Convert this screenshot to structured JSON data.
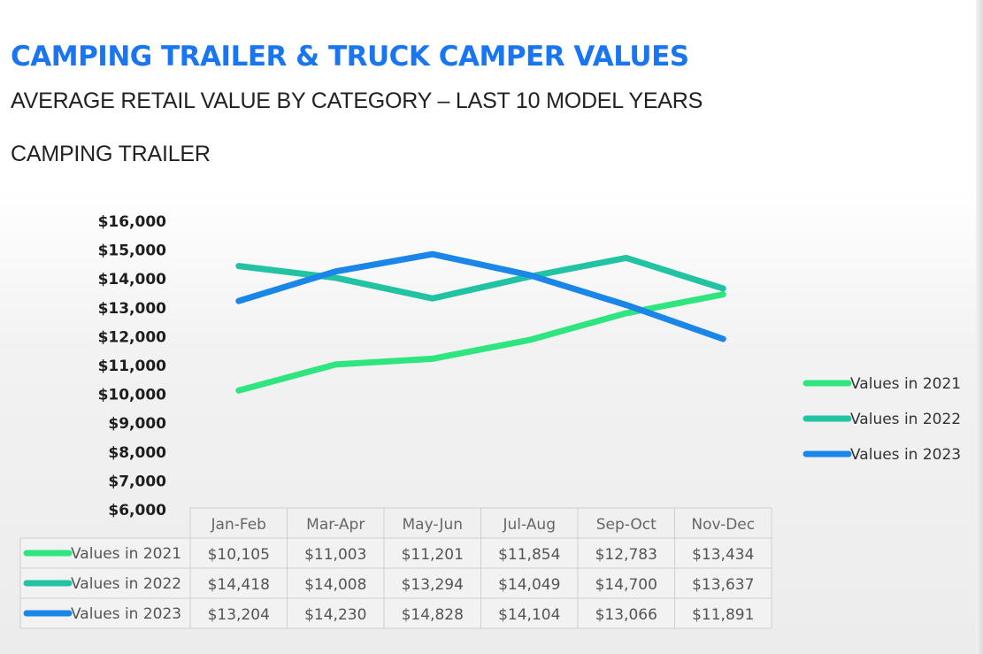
{
  "header": {
    "title": "CAMPING TRAILER & TRUCK CAMPER VALUES",
    "subtitle": "AVERAGE RETAIL VALUE BY CATEGORY – LAST 10 MODEL YEARS",
    "section": "CAMPING TRAILER"
  },
  "colors": {
    "title": "#1976f0",
    "series_2021": "#2fe57f",
    "series_2022": "#22c3a3",
    "series_2023": "#1a86e8"
  },
  "chart_data": {
    "type": "line",
    "title": "",
    "xlabel": "",
    "ylabel": "",
    "categories": [
      "Jan-Feb",
      "Mar-Apr",
      "May-Jun",
      "Jul-Aug",
      "Sep-Oct",
      "Nov-Dec"
    ],
    "ylim": [
      6000,
      16000
    ],
    "yticks": [
      6000,
      7000,
      8000,
      9000,
      10000,
      11000,
      12000,
      13000,
      14000,
      15000,
      16000
    ],
    "ytick_labels": [
      "$6,000",
      "$7,000",
      "$8,000",
      "$9,000",
      "$10,000",
      "$11,000",
      "$12,000",
      "$13,000",
      "$14,000",
      "$15,000",
      "$16,000"
    ],
    "grid": false,
    "legend_position": "right",
    "series": [
      {
        "name": "Values in 2021",
        "color": "#2fe57f",
        "values": [
          10105,
          11003,
          11201,
          11854,
          12783,
          13434
        ],
        "labels": [
          "$10,105",
          "$11,003",
          "$11,201",
          "$11,854",
          "$12,783",
          "$13,434"
        ]
      },
      {
        "name": "Values in 2022",
        "color": "#22c3a3",
        "values": [
          14418,
          14008,
          13294,
          14049,
          14700,
          13637
        ],
        "labels": [
          "$14,418",
          "$14,008",
          "$13,294",
          "$14,049",
          "$14,700",
          "$13,637"
        ]
      },
      {
        "name": "Values in 2023",
        "color": "#1a86e8",
        "values": [
          13204,
          14230,
          14828,
          14104,
          13066,
          11891
        ],
        "labels": [
          "$13,204",
          "$14,230",
          "$14,828",
          "$14,104",
          "$13,066",
          "$11,891"
        ]
      }
    ]
  }
}
